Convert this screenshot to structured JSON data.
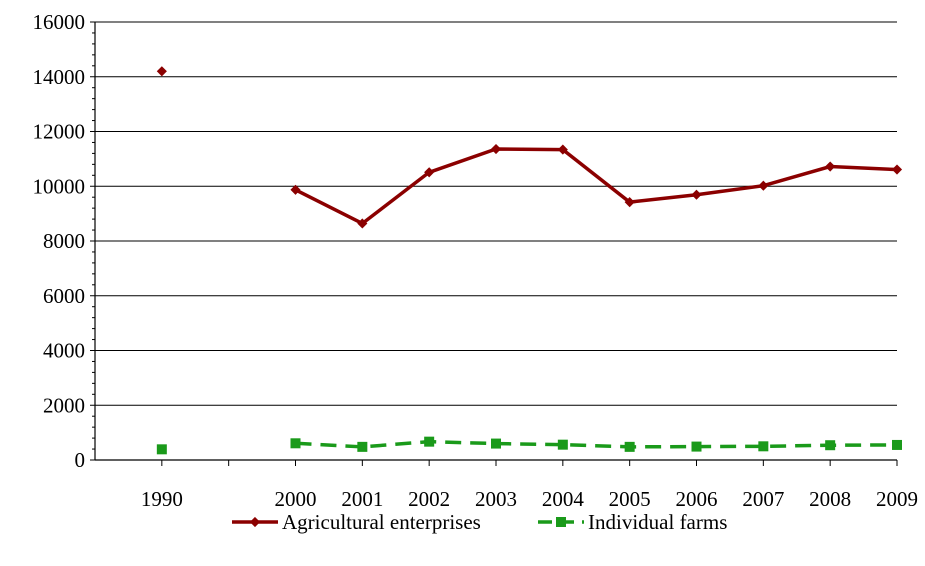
{
  "chart_data": {
    "type": "line",
    "title": "",
    "xlabel": "",
    "ylabel": "",
    "categories": [
      "1990",
      "",
      "2000",
      "2001",
      "2002",
      "2003",
      "2004",
      "2005",
      "2006",
      "2007",
      "2008",
      "2009"
    ],
    "ylim": [
      0,
      16000
    ],
    "yticks": [
      0,
      2000,
      4000,
      6000,
      8000,
      10000,
      12000,
      14000,
      16000
    ],
    "grid": true,
    "legend_position": "bottom",
    "series": [
      {
        "name": "Agricultural enterprises",
        "color": "#8b0000",
        "marker": "diamond",
        "line_style": "solid",
        "values": [
          14200,
          null,
          9870,
          8640,
          10510,
          11360,
          11340,
          9420,
          9690,
          10020,
          10720,
          10610
        ]
      },
      {
        "name": "Individual farms",
        "color": "#1a9a1a",
        "marker": "square",
        "line_style": "dashed",
        "values": [
          390,
          null,
          610,
          480,
          670,
          600,
          560,
          480,
          490,
          500,
          540,
          550
        ]
      }
    ]
  }
}
